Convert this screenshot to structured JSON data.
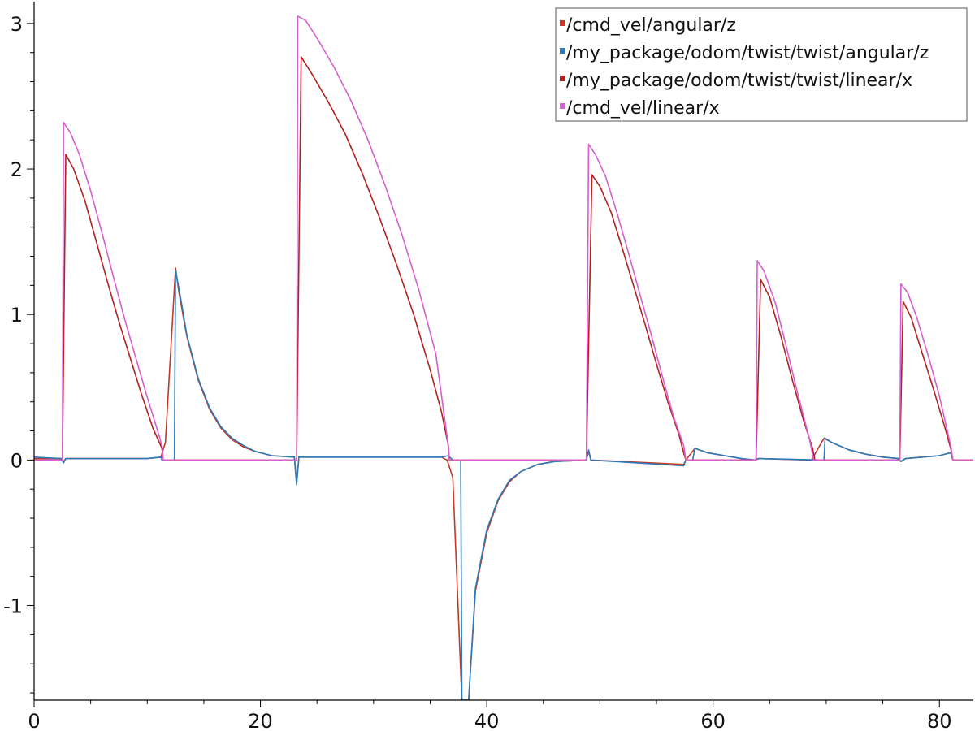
{
  "chart_data": {
    "type": "line",
    "title": "",
    "xlabel": "",
    "ylabel": "",
    "xlim": [
      0,
      83
    ],
    "ylim": [
      -1.65,
      3.15
    ],
    "grid": false,
    "legend_position": "top-right",
    "x_ticks": [
      {
        "value": 0,
        "label": "0"
      },
      {
        "value": 20,
        "label": "20"
      },
      {
        "value": 40,
        "label": "40"
      },
      {
        "value": 60,
        "label": "60"
      },
      {
        "value": 80,
        "label": "80"
      }
    ],
    "y_ticks": [
      {
        "value": -1,
        "label": "-1"
      },
      {
        "value": 0,
        "label": "0"
      },
      {
        "value": 1,
        "label": "1"
      },
      {
        "value": 2,
        "label": "2"
      },
      {
        "value": 3,
        "label": "3"
      }
    ],
    "series": [
      {
        "name": "/cmd_vel/angular/z",
        "color": "#c0392b",
        "points": [
          [
            0,
            0.01
          ],
          [
            2.4,
            0.01
          ],
          [
            2.6,
            -0.01
          ],
          [
            2.8,
            0.01
          ],
          [
            10,
            0.01
          ],
          [
            11.2,
            0.02
          ],
          [
            11.6,
            0.12
          ],
          [
            12.5,
            1.32
          ],
          [
            12.8,
            1.15
          ],
          [
            13.5,
            0.85
          ],
          [
            14.5,
            0.55
          ],
          [
            15.5,
            0.35
          ],
          [
            16.5,
            0.22
          ],
          [
            17.5,
            0.14
          ],
          [
            18.5,
            0.09
          ],
          [
            19.5,
            0.06
          ],
          [
            21,
            0.03
          ],
          [
            23,
            0.02
          ],
          [
            23.2,
            -0.16
          ],
          [
            23.4,
            0.02
          ],
          [
            36,
            0.02
          ],
          [
            36.5,
            0.0
          ],
          [
            37,
            -0.12
          ],
          [
            37.8,
            -1.65
          ],
          [
            38.4,
            -1.65
          ],
          [
            39,
            -0.9
          ],
          [
            40,
            -0.5
          ],
          [
            41,
            -0.28
          ],
          [
            42,
            -0.15
          ],
          [
            43,
            -0.08
          ],
          [
            44.5,
            -0.03
          ],
          [
            46,
            -0.01
          ],
          [
            48.8,
            0.0
          ],
          [
            49,
            0.06
          ],
          [
            49.2,
            0.0
          ],
          [
            57.4,
            -0.03
          ],
          [
            57.6,
            0.0
          ],
          [
            58.4,
            0.08
          ],
          [
            59.5,
            0.05
          ],
          [
            61,
            0.03
          ],
          [
            62.5,
            0.01
          ],
          [
            63.7,
            0.0
          ],
          [
            64,
            0.01
          ],
          [
            68.7,
            0.0
          ],
          [
            69.8,
            0.15
          ],
          [
            70.5,
            0.12
          ],
          [
            72,
            0.07
          ],
          [
            73.5,
            0.04
          ],
          [
            75,
            0.02
          ],
          [
            76.4,
            0.01
          ],
          [
            76.6,
            -0.01
          ],
          [
            77,
            0.01
          ],
          [
            80,
            0.03
          ],
          [
            81,
            0.05
          ],
          [
            81.2,
            0.0
          ],
          [
            83,
            0.0
          ]
        ]
      },
      {
        "name": "/my_package/odom/twist/twist/angular/z",
        "color": "#2c7bb6",
        "points": [
          [
            0,
            0.02
          ],
          [
            2.4,
            0.01
          ],
          [
            2.6,
            -0.02
          ],
          [
            2.8,
            0.01
          ],
          [
            10,
            0.01
          ],
          [
            11.2,
            0.02
          ],
          [
            11.3,
            0.0
          ],
          [
            12.4,
            0.0
          ],
          [
            12.5,
            1.3
          ],
          [
            12.8,
            1.18
          ],
          [
            13.5,
            0.86
          ],
          [
            14.5,
            0.56
          ],
          [
            15.5,
            0.36
          ],
          [
            16.5,
            0.23
          ],
          [
            17.5,
            0.15
          ],
          [
            18.5,
            0.1
          ],
          [
            19.5,
            0.06
          ],
          [
            21,
            0.03
          ],
          [
            23,
            0.02
          ],
          [
            23.2,
            -0.17
          ],
          [
            23.4,
            0.02
          ],
          [
            36,
            0.02
          ],
          [
            36.6,
            0.03
          ],
          [
            37,
            0.0
          ],
          [
            37.7,
            0.0
          ],
          [
            37.8,
            -1.65
          ],
          [
            38.4,
            -1.65
          ],
          [
            39,
            -0.88
          ],
          [
            40,
            -0.48
          ],
          [
            41,
            -0.27
          ],
          [
            42,
            -0.14
          ],
          [
            43,
            -0.08
          ],
          [
            44.5,
            -0.03
          ],
          [
            46,
            -0.01
          ],
          [
            48.8,
            0.0
          ],
          [
            49,
            0.07
          ],
          [
            49.2,
            0.0
          ],
          [
            57.4,
            -0.04
          ],
          [
            57.6,
            0.0
          ],
          [
            58.2,
            0.0
          ],
          [
            58.4,
            0.08
          ],
          [
            59.5,
            0.05
          ],
          [
            61,
            0.03
          ],
          [
            62.5,
            0.01
          ],
          [
            63.7,
            0.0
          ],
          [
            64,
            0.01
          ],
          [
            69.8,
            0.0
          ],
          [
            69.9,
            0.15
          ],
          [
            70.5,
            0.12
          ],
          [
            72,
            0.07
          ],
          [
            73.5,
            0.04
          ],
          [
            75,
            0.02
          ],
          [
            76.4,
            0.01
          ],
          [
            76.6,
            -0.01
          ],
          [
            77,
            0.01
          ],
          [
            80,
            0.03
          ],
          [
            81,
            0.05
          ],
          [
            81.2,
            0.0
          ],
          [
            83,
            0.0
          ]
        ]
      },
      {
        "name": "/my_package/odom/twist/twist/linear/x",
        "color": "#b22222",
        "points": [
          [
            0,
            0.0
          ],
          [
            2.5,
            0.0
          ],
          [
            2.8,
            2.1
          ],
          [
            3.5,
            2.0
          ],
          [
            4.5,
            1.78
          ],
          [
            5.5,
            1.5
          ],
          [
            6.5,
            1.22
          ],
          [
            7.5,
            0.95
          ],
          [
            8.5,
            0.7
          ],
          [
            9.5,
            0.45
          ],
          [
            10.5,
            0.22
          ],
          [
            11.3,
            0.08
          ],
          [
            11.4,
            0.0
          ],
          [
            23.2,
            0.0
          ],
          [
            23.6,
            2.77
          ],
          [
            24.5,
            2.66
          ],
          [
            26,
            2.46
          ],
          [
            27.5,
            2.24
          ],
          [
            29,
            1.97
          ],
          [
            30.5,
            1.67
          ],
          [
            32,
            1.35
          ],
          [
            33.5,
            1.01
          ],
          [
            35,
            0.62
          ],
          [
            36,
            0.33
          ],
          [
            36.6,
            0.1
          ],
          [
            36.7,
            0.0
          ],
          [
            48.8,
            0.0
          ],
          [
            49.3,
            1.96
          ],
          [
            50,
            1.88
          ],
          [
            51,
            1.7
          ],
          [
            52,
            1.45
          ],
          [
            53,
            1.19
          ],
          [
            54,
            0.93
          ],
          [
            55,
            0.66
          ],
          [
            56,
            0.4
          ],
          [
            57,
            0.17
          ],
          [
            57.4,
            0.05
          ],
          [
            57.6,
            0.0
          ],
          [
            63.8,
            0.0
          ],
          [
            64.2,
            1.24
          ],
          [
            65,
            1.12
          ],
          [
            66,
            0.85
          ],
          [
            67,
            0.55
          ],
          [
            68,
            0.27
          ],
          [
            68.8,
            0.08
          ],
          [
            69,
            0.0
          ],
          [
            76.5,
            0.0
          ],
          [
            76.8,
            1.09
          ],
          [
            77.5,
            0.98
          ],
          [
            78.5,
            0.73
          ],
          [
            79.5,
            0.48
          ],
          [
            80.5,
            0.22
          ],
          [
            81,
            0.08
          ],
          [
            81.2,
            0.0
          ],
          [
            83,
            0.0
          ]
        ]
      },
      {
        "name": "/cmd_vel/linear/x",
        "color": "#d65fcf",
        "points": [
          [
            0,
            0.0
          ],
          [
            2.5,
            0.0
          ],
          [
            2.6,
            2.32
          ],
          [
            3.2,
            2.25
          ],
          [
            4,
            2.1
          ],
          [
            5,
            1.85
          ],
          [
            6,
            1.56
          ],
          [
            7,
            1.26
          ],
          [
            8,
            0.97
          ],
          [
            9,
            0.7
          ],
          [
            10,
            0.43
          ],
          [
            11,
            0.18
          ],
          [
            11.3,
            0.1
          ],
          [
            11.4,
            0.0
          ],
          [
            23.2,
            0.0
          ],
          [
            23.3,
            3.05
          ],
          [
            24,
            3.02
          ],
          [
            25,
            2.9
          ],
          [
            26.5,
            2.7
          ],
          [
            28,
            2.47
          ],
          [
            29.5,
            2.2
          ],
          [
            31,
            1.89
          ],
          [
            32.5,
            1.55
          ],
          [
            34,
            1.17
          ],
          [
            35.5,
            0.73
          ],
          [
            36.6,
            0.1
          ],
          [
            36.7,
            0.0
          ],
          [
            48.8,
            0.0
          ],
          [
            49,
            2.17
          ],
          [
            49.6,
            2.1
          ],
          [
            50.5,
            1.95
          ],
          [
            51.5,
            1.7
          ],
          [
            52.5,
            1.43
          ],
          [
            53.5,
            1.15
          ],
          [
            54.5,
            0.87
          ],
          [
            55.5,
            0.58
          ],
          [
            56.5,
            0.3
          ],
          [
            57.4,
            0.1
          ],
          [
            57.6,
            0.0
          ],
          [
            63.8,
            0.0
          ],
          [
            63.9,
            1.37
          ],
          [
            64.5,
            1.3
          ],
          [
            65.5,
            1.08
          ],
          [
            66.5,
            0.77
          ],
          [
            67.5,
            0.45
          ],
          [
            68.5,
            0.15
          ],
          [
            68.9,
            0.0
          ],
          [
            76.5,
            0.0
          ],
          [
            76.6,
            1.21
          ],
          [
            77.2,
            1.15
          ],
          [
            78,
            0.98
          ],
          [
            79,
            0.72
          ],
          [
            80,
            0.44
          ],
          [
            81,
            0.1
          ],
          [
            81.2,
            0.0
          ],
          [
            83,
            0.0
          ]
        ]
      }
    ]
  }
}
